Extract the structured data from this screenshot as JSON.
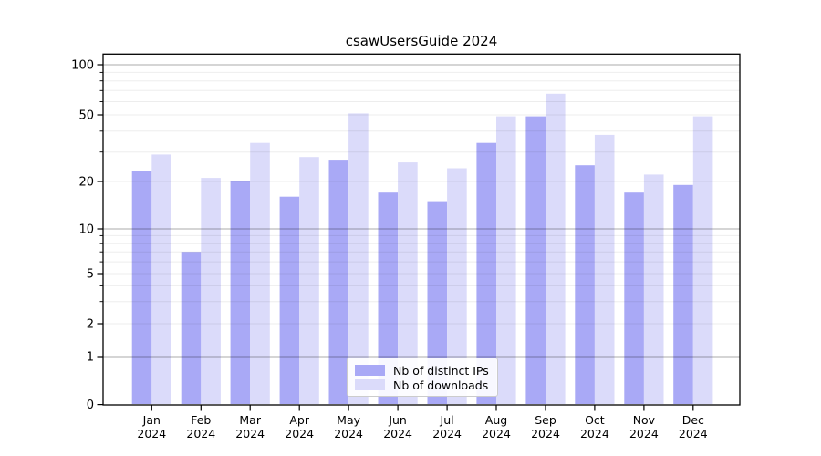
{
  "figure": {
    "title": "csawUsersGuide 2024"
  },
  "chart_data": {
    "type": "bar",
    "title": "csawUsersGuide 2024",
    "categories": [
      "Jan",
      "Feb",
      "Mar",
      "Apr",
      "May",
      "Jun",
      "Jul",
      "Aug",
      "Sep",
      "Oct",
      "Nov",
      "Dec"
    ],
    "category_year": "2024",
    "series": [
      {
        "name": "Nb of distinct IPs",
        "color": "#a9a9f6",
        "values": [
          23,
          7,
          20,
          16,
          27,
          17,
          15,
          34,
          49,
          25,
          17,
          19
        ]
      },
      {
        "name": "Nb of downloads",
        "color": "#dbdbfa",
        "values": [
          29,
          21,
          34,
          28,
          51,
          26,
          24,
          49,
          67,
          38,
          22,
          49
        ]
      }
    ],
    "yscale": "log-like",
    "ylim": [
      0,
      110
    ],
    "yticks": [
      0,
      1,
      2,
      5,
      10,
      20,
      50,
      100
    ],
    "minor_gridlines": [
      2,
      3,
      4,
      5,
      6,
      7,
      8,
      9,
      20,
      30,
      40,
      50,
      60,
      70,
      80,
      90
    ],
    "major_gridlines": [
      1,
      10,
      100
    ],
    "grid": true,
    "legend_position": "lower center",
    "colors": {
      "bar_dark": "#a9a9f6",
      "bar_light": "#dbdbfa",
      "grid_minor": "#ebebeb",
      "grid_major": "#ababab",
      "axis": "#000000",
      "background": "#ffffff"
    }
  },
  "legend": {
    "items": [
      {
        "label": "Nb of distinct IPs"
      },
      {
        "label": "Nb of downloads"
      }
    ]
  }
}
